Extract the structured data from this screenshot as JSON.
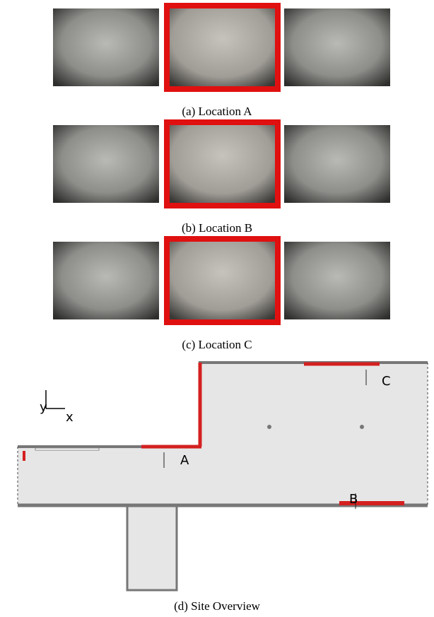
{
  "panels": [
    {
      "caption": "(a) Location A"
    },
    {
      "caption": "(b) Location B"
    },
    {
      "caption": "(c) Location C"
    }
  ],
  "site_overview": {
    "caption": "(d) Site Overview",
    "axis_labels": {
      "x": "x",
      "y": "y"
    },
    "locations": [
      "A",
      "B",
      "C"
    ]
  }
}
